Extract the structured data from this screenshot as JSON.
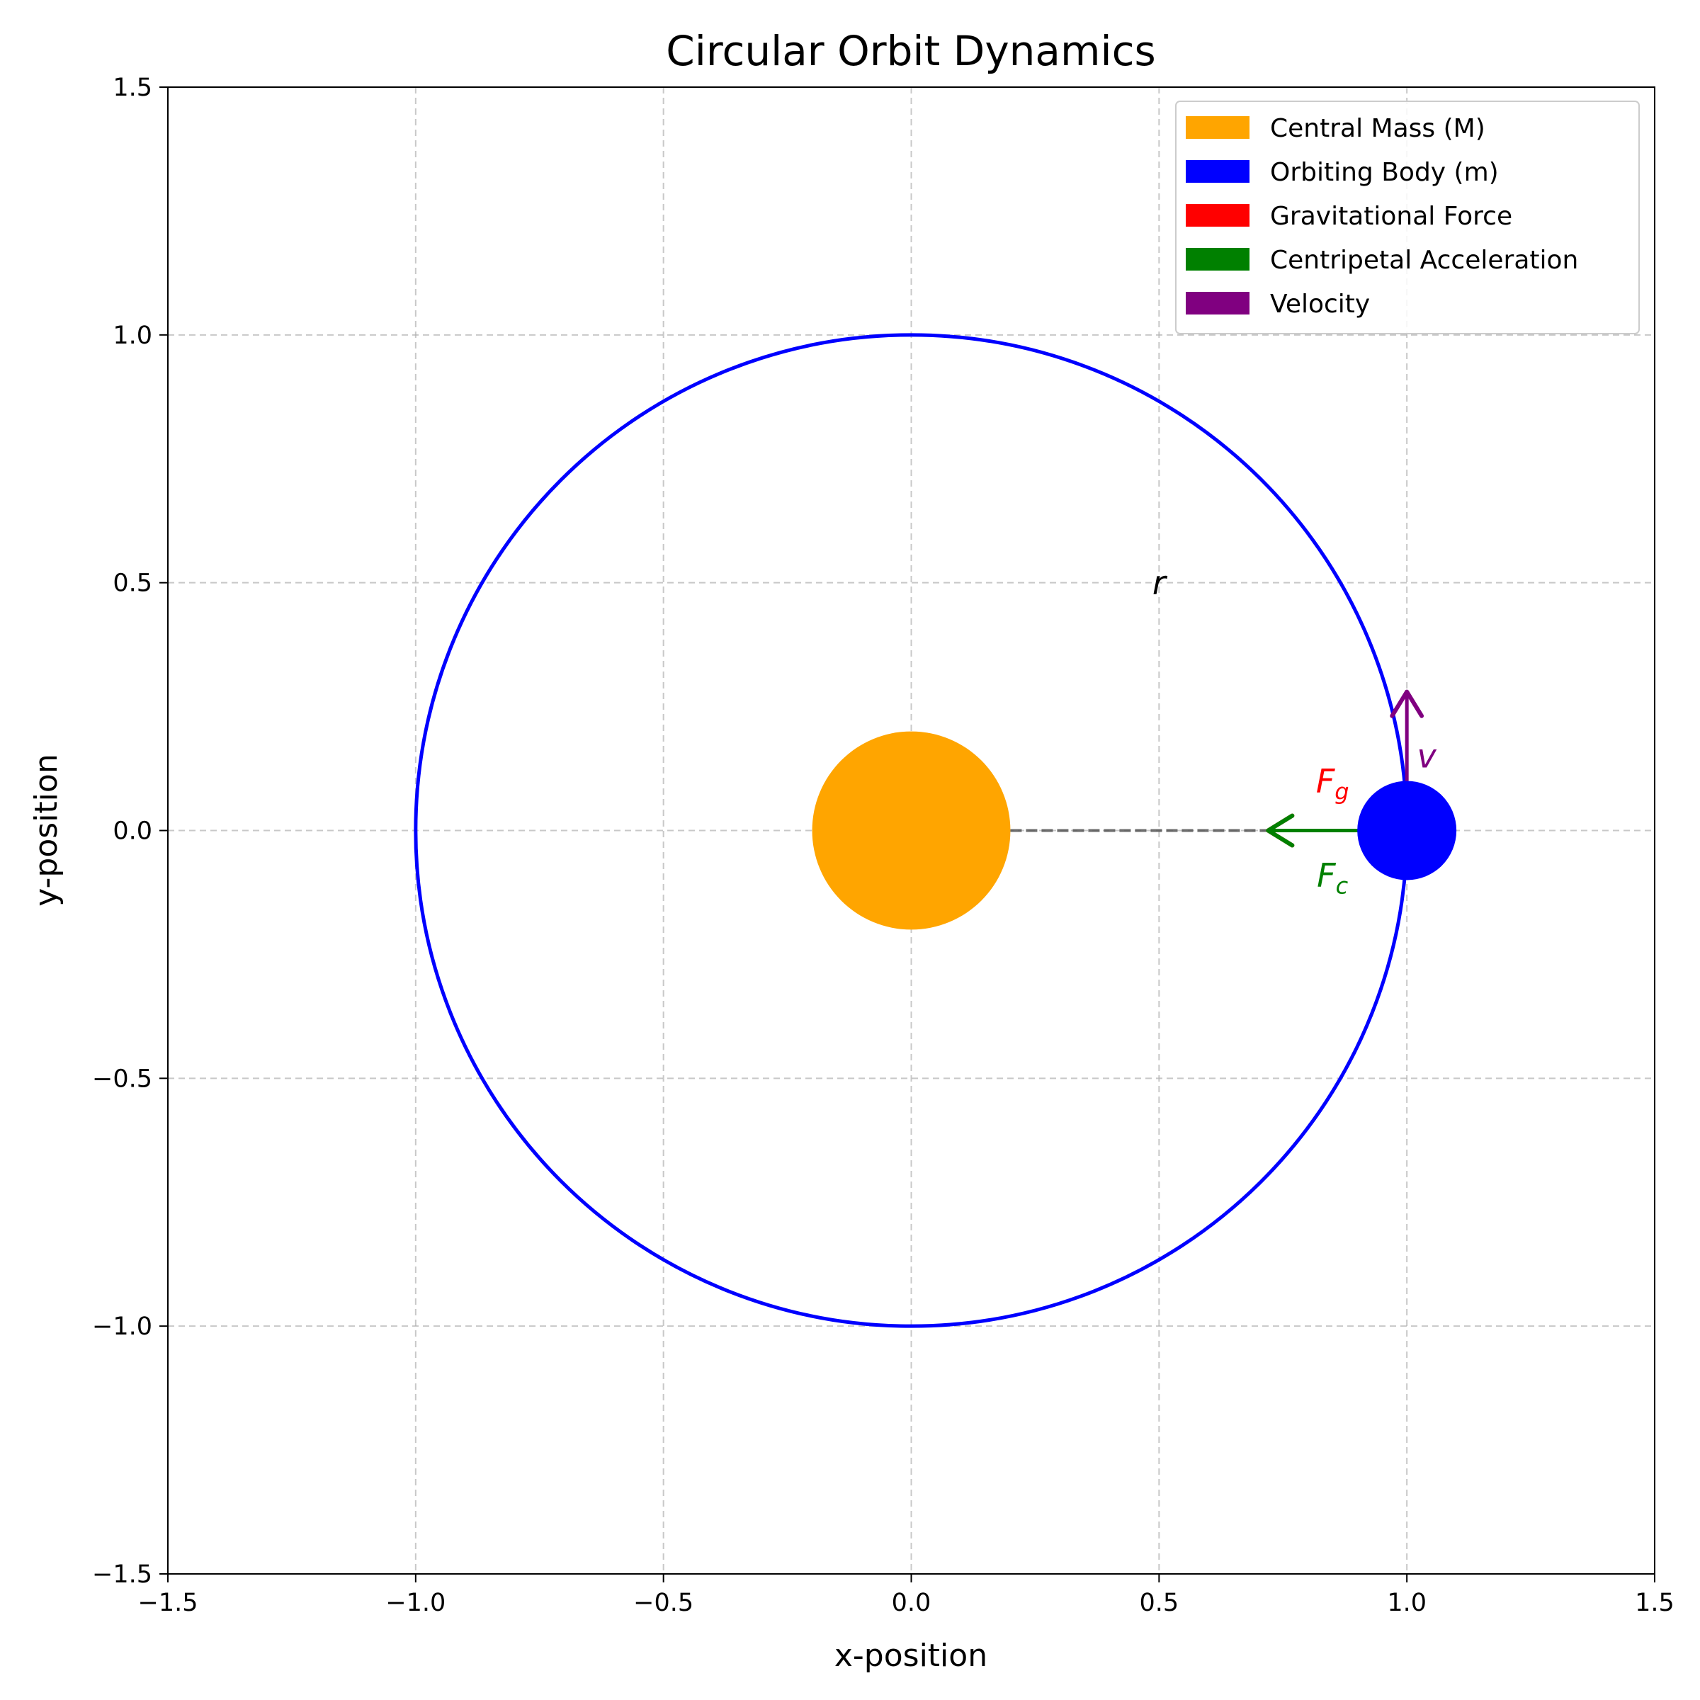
{
  "chart_data": {
    "type": "scatter",
    "title": "Circular Orbit Dynamics",
    "xlabel": "x-position",
    "ylabel": "y-position",
    "xlim": [
      -1.5,
      1.5
    ],
    "ylim": [
      -1.5,
      1.5
    ],
    "xticks": [
      -1.5,
      -1.0,
      -0.5,
      0.0,
      0.5,
      1.0,
      1.5
    ],
    "yticks": [
      -1.5,
      -1.0,
      -0.5,
      0.0,
      0.5,
      1.0,
      1.5
    ],
    "xtick_labels": [
      "−1.5",
      "−1.0",
      "−0.5",
      "0.0",
      "0.5",
      "1.0",
      "1.5"
    ],
    "ytick_labels": [
      "−1.5",
      "−1.0",
      "−0.5",
      "0.0",
      "0.5",
      "1.0",
      "1.5"
    ],
    "grid": true,
    "legend_position": "top-right",
    "legend": [
      {
        "label": "Central Mass (M)",
        "color": "#ffa500"
      },
      {
        "label": "Orbiting Body (m)",
        "color": "#0000ff"
      },
      {
        "label": "Gravitational Force",
        "color": "#ff0000"
      },
      {
        "label": "Centripetal Acceleration",
        "color": "#008000"
      },
      {
        "label": "Velocity",
        "color": "#800080"
      }
    ],
    "orbit": {
      "center": [
        0,
        0
      ],
      "radius": 1.0,
      "color": "#0000ff"
    },
    "central_mass": {
      "center": [
        0,
        0
      ],
      "radius": 0.2,
      "color": "#ffa500"
    },
    "orbiting_body": {
      "center": [
        1.0,
        0
      ],
      "radius": 0.1,
      "color": "#0000ff"
    },
    "radius_line": {
      "from": [
        0.2,
        0
      ],
      "to": [
        0.9,
        0
      ],
      "color": "#555555"
    },
    "vectors": [
      {
        "name": "gravitational-force",
        "from": [
          1.0,
          0
        ],
        "to": [
          0.72,
          0
        ],
        "color": "#ff0000"
      },
      {
        "name": "centripetal-acceleration",
        "from": [
          1.0,
          0
        ],
        "to": [
          0.72,
          0
        ],
        "color": "#008000"
      },
      {
        "name": "velocity",
        "from": [
          1.0,
          0.1
        ],
        "to": [
          1.0,
          0.28
        ],
        "color": "#800080"
      }
    ],
    "annotations": [
      {
        "label": "r",
        "sub": "",
        "x": 0.5,
        "y": 0.5,
        "color": "#000000"
      },
      {
        "label": "F",
        "sub": "g",
        "x": 0.85,
        "y": 0.1,
        "color": "#ff0000"
      },
      {
        "label": "F",
        "sub": "c",
        "x": 0.85,
        "y": -0.09,
        "color": "#008000"
      },
      {
        "label": "v",
        "sub": "",
        "x": 1.04,
        "y": 0.15,
        "color": "#800080"
      }
    ]
  }
}
